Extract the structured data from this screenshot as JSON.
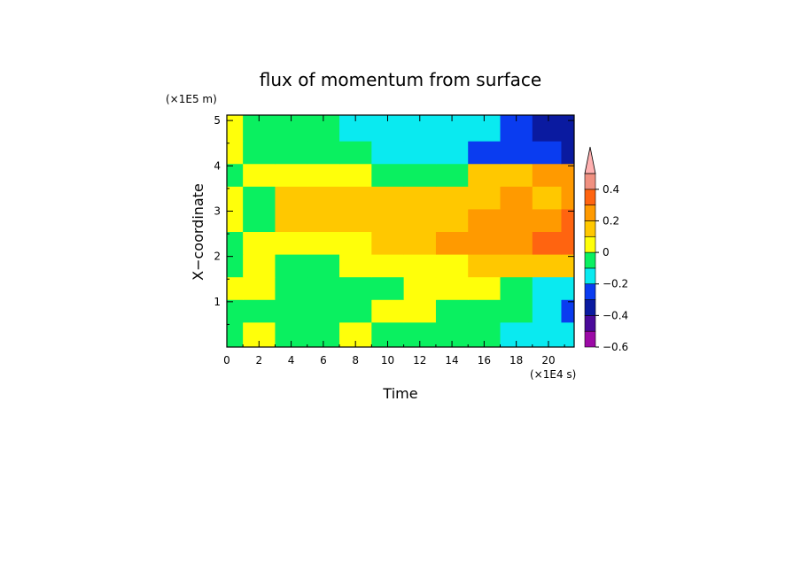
{
  "chart_data": {
    "type": "heatmap",
    "title": "flux of momentum from surface",
    "xlabel": "Time",
    "ylabel": "X−coordinate",
    "x_unit": "(×1E4 s)",
    "y_unit": "(×1E5 m)",
    "xlim": [
      0,
      21.6
    ],
    "ylim": [
      0,
      5.12
    ],
    "x_ticks": [
      0,
      2,
      4,
      6,
      8,
      10,
      12,
      14,
      16,
      18,
      20
    ],
    "y_ticks": [
      1,
      2,
      3,
      4,
      5
    ],
    "colorbar": {
      "levels": [
        -0.6,
        -0.5,
        -0.4,
        -0.3,
        -0.2,
        -0.1,
        0,
        0.1,
        0.2,
        0.3,
        0.4,
        0.5
      ],
      "colors": [
        "#9c0aa6",
        "#4a0a9a",
        "#0a1aa0",
        "#0a3cf0",
        "#0aeaf0",
        "#0af060",
        "#ffff0a",
        "#ffc800",
        "#ff9a00",
        "#ff6410",
        "#f09080",
        "#ffb0b0"
      ],
      "tick_labels": [
        "−0.6",
        "−0.4",
        "−0.2",
        "0",
        "0.2",
        "0.4"
      ],
      "tick_values": [
        -0.6,
        -0.4,
        -0.2,
        0,
        0.2,
        0.4
      ]
    },
    "t": [
      0,
      2,
      4,
      6,
      8,
      10,
      12,
      14,
      16,
      18,
      20,
      21.6
    ],
    "x": [
      0.3,
      0.8,
      1.3,
      1.8,
      2.3,
      2.8,
      3.3,
      3.8,
      4.3,
      4.8
    ],
    "values": [
      [
        -0.05,
        0.05,
        -0.05,
        -0.05,
        0.05,
        -0.05,
        -0.05,
        -0.1,
        -0.1,
        -0.15,
        -0.15,
        -0.15
      ],
      [
        -0.05,
        -0.05,
        -0.05,
        -0.05,
        -0.05,
        0.05,
        0.05,
        -0.05,
        -0.05,
        -0.05,
        -0.15,
        -0.25
      ],
      [
        0.05,
        0.05,
        -0.05,
        -0.05,
        -0.05,
        -0.05,
        0.05,
        0.05,
        0.05,
        -0.05,
        -0.15,
        -0.15
      ],
      [
        -0.05,
        0.05,
        -0.05,
        -0.05,
        0.05,
        0.05,
        0.05,
        0.05,
        0.15,
        0.15,
        0.15,
        0.15
      ],
      [
        -0.05,
        0.05,
        0.05,
        0.05,
        0.05,
        0.15,
        0.15,
        0.25,
        0.25,
        0.25,
        0.35,
        0.35
      ],
      [
        0.05,
        -0.05,
        0.15,
        0.15,
        0.15,
        0.15,
        0.15,
        0.15,
        0.25,
        0.25,
        0.25,
        0.35
      ],
      [
        0.05,
        -0.05,
        0.15,
        0.15,
        0.15,
        0.15,
        0.15,
        0.15,
        0.15,
        0.25,
        0.15,
        0.25
      ],
      [
        -0.05,
        0.05,
        0.05,
        0.05,
        0.05,
        -0.05,
        -0.05,
        -0.05,
        0.15,
        0.15,
        0.25,
        0.25
      ],
      [
        0.05,
        -0.05,
        -0.05,
        -0.05,
        -0.05,
        -0.15,
        -0.15,
        -0.15,
        -0.25,
        -0.25,
        -0.25,
        -0.35
      ],
      [
        0.05,
        -0.05,
        -0.05,
        -0.05,
        -0.15,
        -0.15,
        -0.15,
        -0.15,
        -0.15,
        -0.25,
        -0.35,
        -0.35
      ]
    ]
  }
}
